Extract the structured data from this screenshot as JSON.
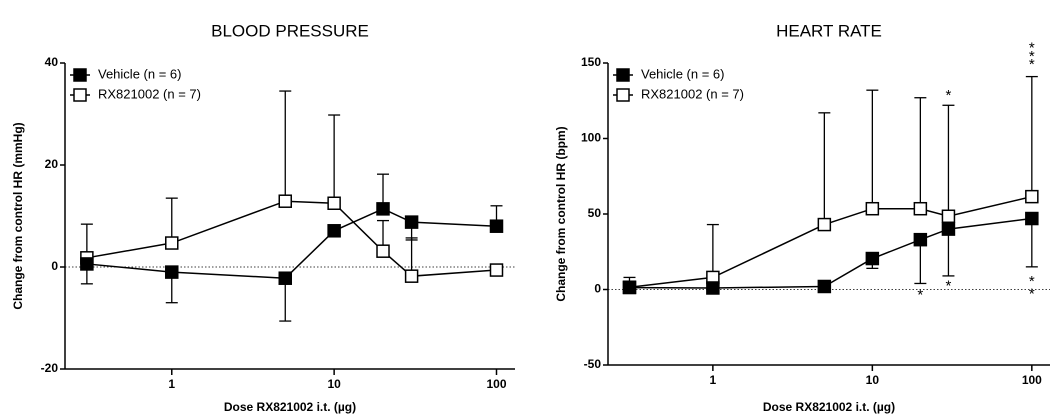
{
  "chart_data": [
    {
      "type": "line",
      "title": "BLOOD PRESSURE",
      "xlabel": "Dose RX821002 i.t. (µg)",
      "ylabel": "Change from control HR (mmHg)",
      "x": [
        0.3,
        1,
        5,
        10,
        20,
        30,
        100
      ],
      "xscale": "log",
      "xlim": [
        0.22,
        130
      ],
      "xticks": [
        1,
        10,
        100
      ],
      "ylim": [
        -20,
        40
      ],
      "yticks": [
        -20,
        0,
        20,
        40
      ],
      "reference_line": 0,
      "legend": "upper left",
      "series": [
        {
          "name": "Vehicle (n = 6)",
          "color": "#000000",
          "marker": "filled-square",
          "values": [
            0.6,
            -1,
            -2.2,
            7.1,
            11.4,
            8.8,
            8
          ],
          "errors": [
            3.9,
            6,
            8.4,
            1,
            6.8,
            3.5,
            4
          ],
          "error_side": [
            "down",
            "down",
            "down",
            "down",
            "up",
            "down",
            "up"
          ]
        },
        {
          "name": "RX821002 (n = 7)",
          "color": "#000000",
          "marker": "open-square",
          "values": [
            1.8,
            4.7,
            12.9,
            12.5,
            3.1,
            -1.8,
            -0.6
          ],
          "errors": [
            6.6,
            8.8,
            21.6,
            17.3,
            6,
            7.5,
            0
          ],
          "error_side": [
            "up",
            "up",
            "up",
            "up",
            "up",
            "up",
            "up"
          ]
        }
      ]
    },
    {
      "type": "line",
      "title": "HEART RATE",
      "xlabel": "Dose RX821002 i.t. (µg)",
      "ylabel": "Change from control HR (bpm)",
      "x": [
        0.3,
        1,
        5,
        10,
        20,
        30,
        100
      ],
      "xscale": "log",
      "xlim": [
        0.22,
        130
      ],
      "xticks": [
        1,
        10,
        100
      ],
      "ylim": [
        -50,
        150
      ],
      "yticks": [
        -50,
        0,
        50,
        100,
        150
      ],
      "reference_line": 0,
      "legend": "upper left",
      "series": [
        {
          "name": "Vehicle (n = 6)",
          "color": "#000000",
          "marker": "filled-square",
          "values": [
            1.3,
            1,
            2,
            20.5,
            33,
            40,
            47
          ],
          "errors": [
            0,
            0,
            1,
            6.5,
            29,
            31,
            32
          ],
          "error_side": [
            "down",
            "down",
            "down",
            "down",
            "down",
            "down",
            "down"
          ]
        },
        {
          "name": "RX821002 (n = 7)",
          "color": "#000000",
          "marker": "open-square",
          "values": [
            1.5,
            8,
            43,
            53.5,
            53.5,
            48.5,
            61.5
          ],
          "errors": [
            6.5,
            35,
            74,
            78.5,
            73.5,
            73.5,
            79.5
          ],
          "error_side": [
            "up",
            "up",
            "up",
            "up",
            "up",
            "up",
            "up"
          ]
        }
      ],
      "annotations": [
        {
          "text": "*",
          "x": 20,
          "y": -2
        },
        {
          "text": "*",
          "x": 30,
          "y": 130
        },
        {
          "text": "*",
          "x": 30,
          "y": 4
        },
        {
          "text": "*",
          "x": 100,
          "y": 161.6
        },
        {
          "text": "*",
          "x": 100,
          "y": 156
        },
        {
          "text": "*",
          "x": 100,
          "y": 150.7
        },
        {
          "text": "*",
          "x": 100,
          "y": 7
        },
        {
          "text": "*",
          "x": 100,
          "y": -1.5
        }
      ]
    }
  ]
}
